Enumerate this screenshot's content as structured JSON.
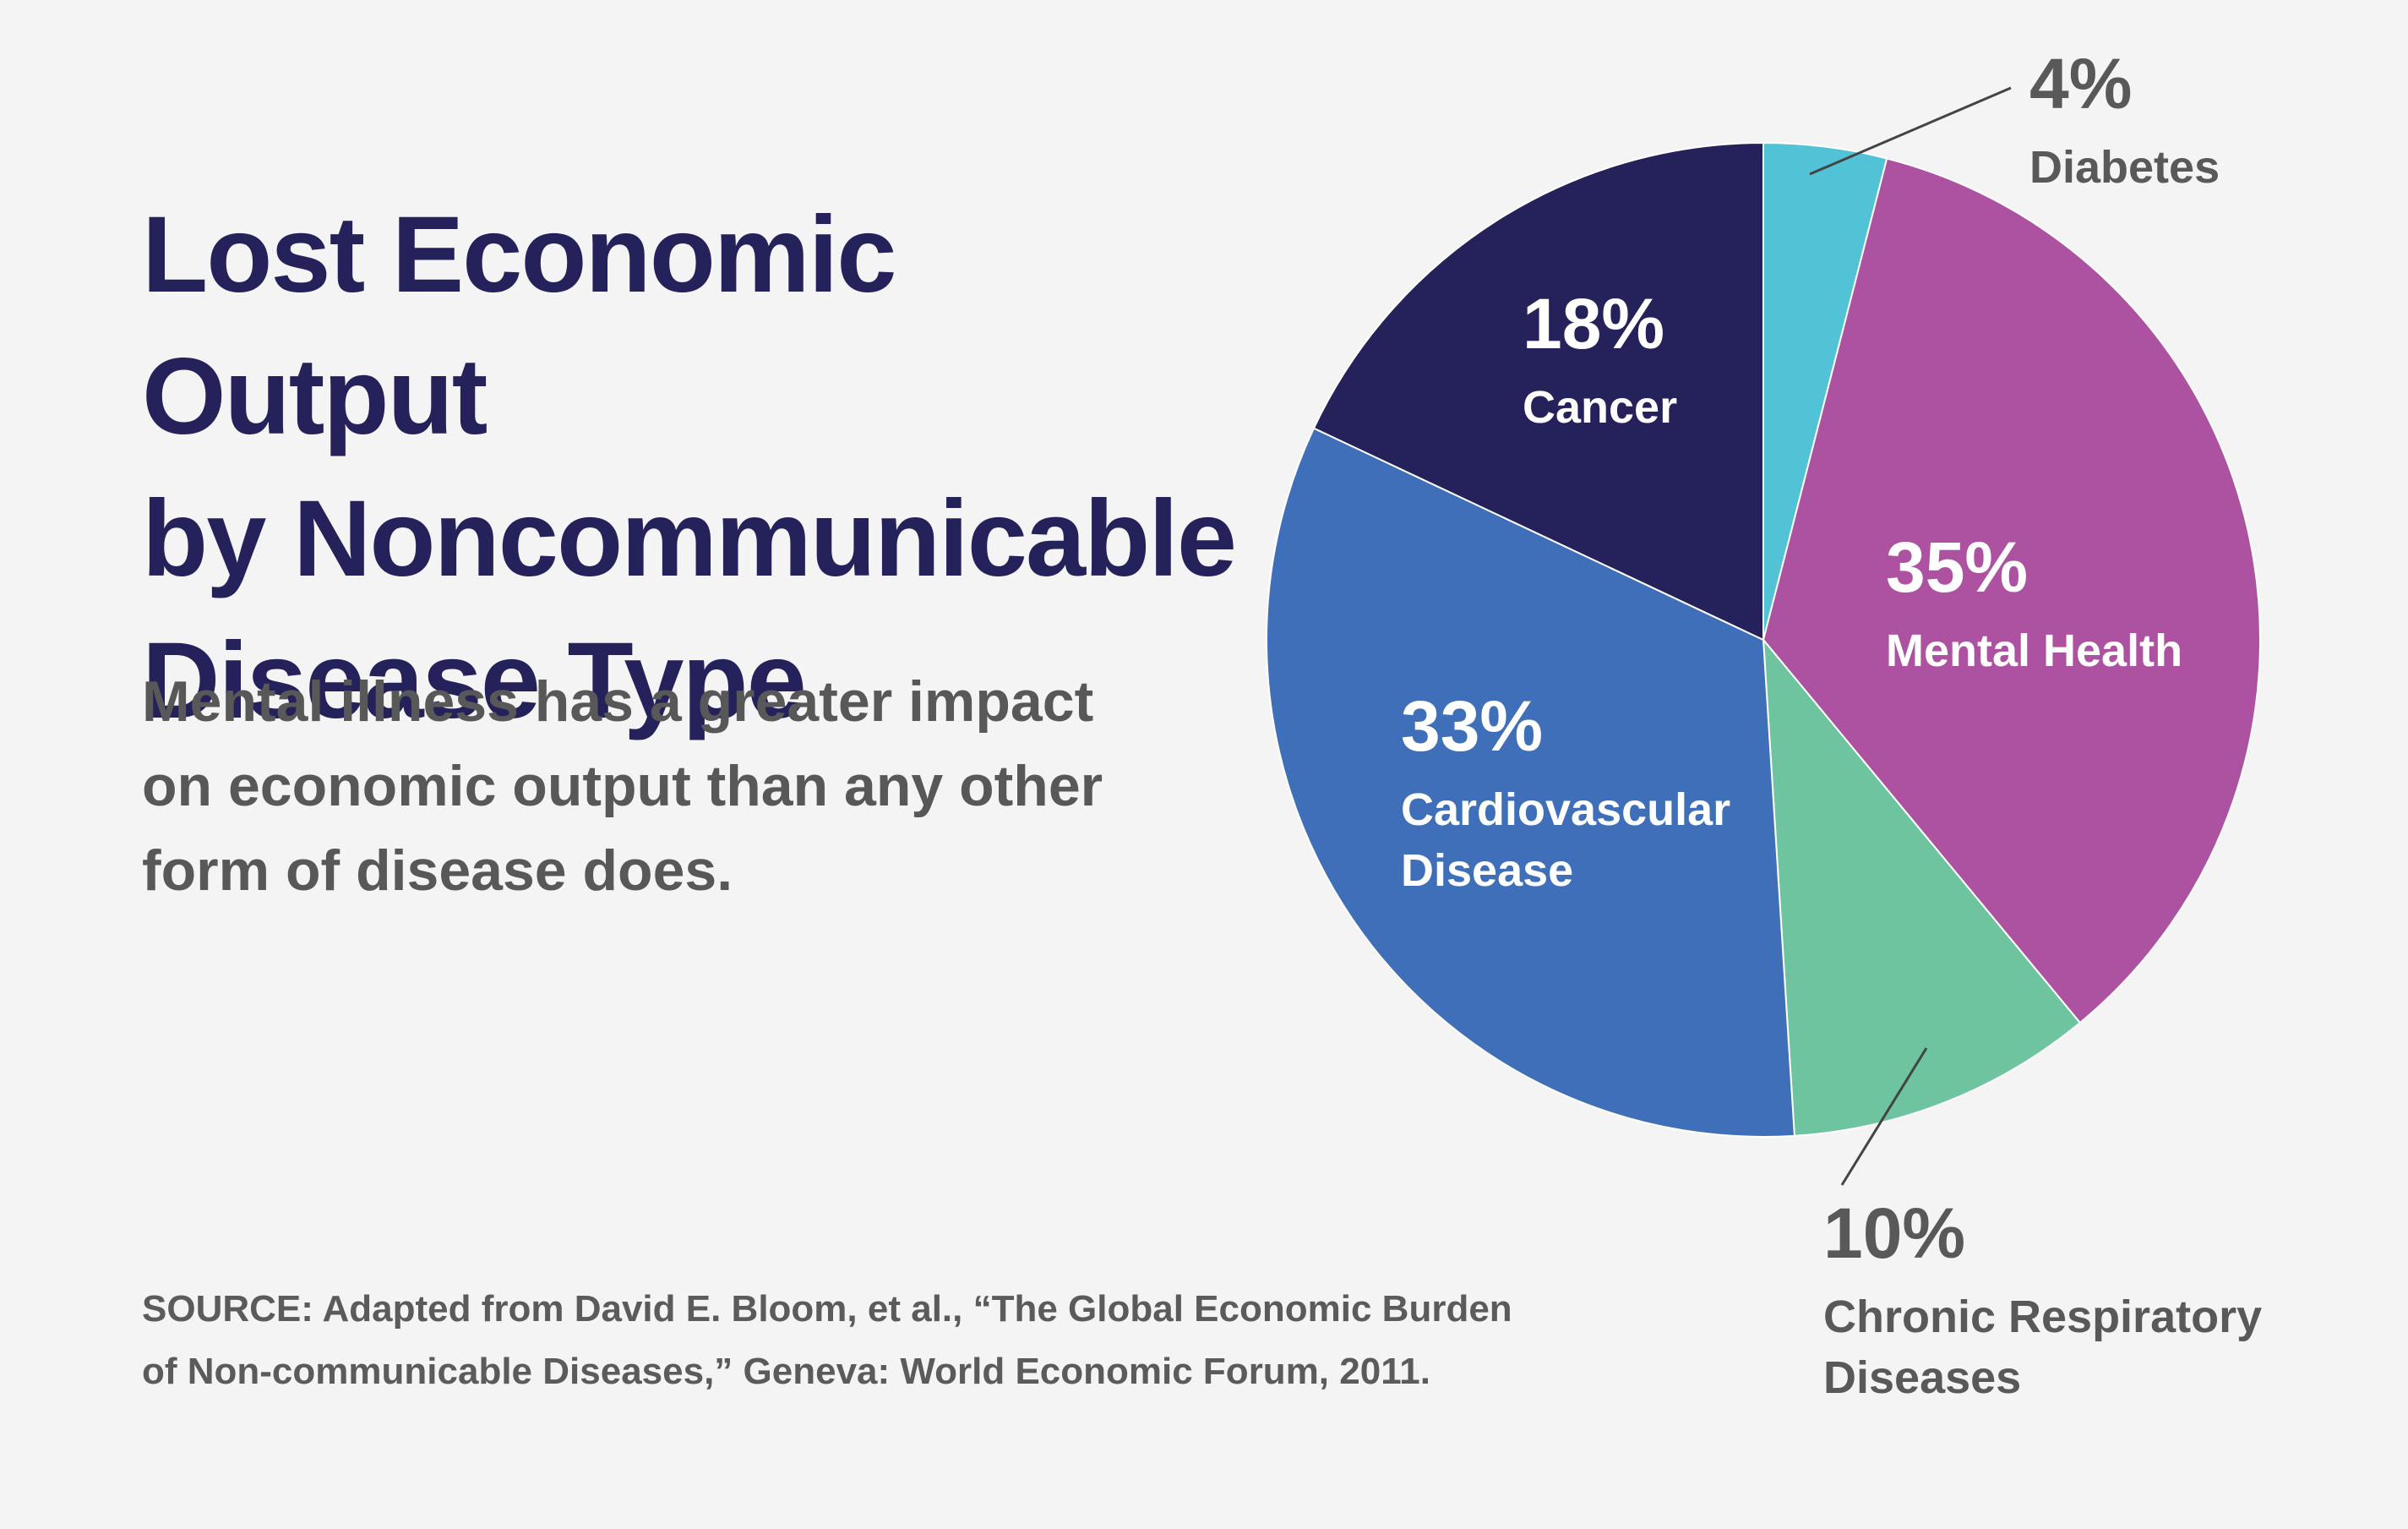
{
  "title": {
    "lines": [
      "Lost Economic Output",
      "by Noncommunicable",
      "Disease Type"
    ]
  },
  "subtitle": {
    "lines": [
      "Mental illness has a greater impact",
      "on economic output than any other",
      "form of disease does."
    ]
  },
  "source": {
    "lines": [
      "SOURCE: Adapted from David E. Bloom, et al., “The Global Economic Burden",
      "of Non-communicable Diseases,” Geneva: World Economic Forum, 2011."
    ]
  },
  "chart_data": {
    "type": "pie",
    "title": "Lost Economic Output by Noncommunicable Disease Type",
    "unit": "%",
    "slices": [
      {
        "pct_label": "4%",
        "name_lines": [
          "Diabetes"
        ],
        "value": 4,
        "color": "#52c3d6"
      },
      {
        "pct_label": "35%",
        "name_lines": [
          "Mental Health"
        ],
        "value": 35,
        "color": "#ad52a0"
      },
      {
        "pct_label": "10%",
        "name_lines": [
          "Chronic Respiratory",
          "Diseases"
        ],
        "value": 10,
        "color": "#6dc49e"
      },
      {
        "pct_label": "33%",
        "name_lines": [
          "Cardiovascular",
          "Disease"
        ],
        "value": 33,
        "color": "#3e6fb8"
      },
      {
        "pct_label": "18%",
        "name_lines": [
          "Cancer"
        ],
        "value": 18,
        "color": "#25215a"
      }
    ]
  }
}
